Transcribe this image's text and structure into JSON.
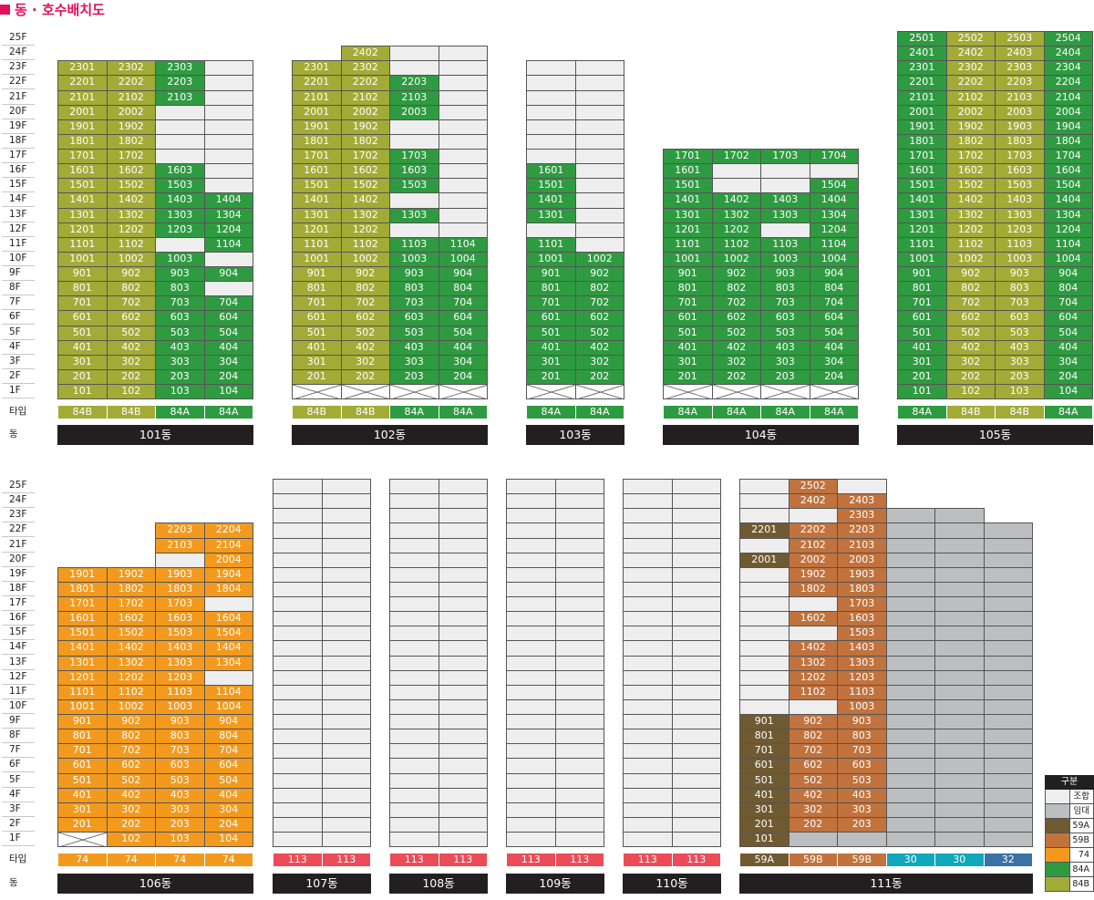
{
  "title": "동 · 호수배치도",
  "type_label": "타입",
  "dong_label": "동",
  "colors": {
    "empty": "#eeeeee",
    "rental": "#bcbec0",
    "59A": "#705a31",
    "59B": "#c1723d",
    "74": "#f39a1e",
    "84A": "#2e9b41",
    "84B": "#a3ab37",
    "113": "#ec4c57",
    "30": "#11a8bb",
    "32": "#3c71a6"
  },
  "legend": {
    "header": "구분",
    "items": [
      {
        "label": "조합",
        "color": "#eeeeee"
      },
      {
        "label": "임대",
        "color": "#bcbec0"
      },
      {
        "label": "59A",
        "color": "#705a31"
      },
      {
        "label": "59B",
        "color": "#c1723d"
      },
      {
        "label": "74",
        "color": "#f39a1e"
      },
      {
        "label": "84A",
        "color": "#2e9b41"
      },
      {
        "label": "84B",
        "color": "#a3ab37"
      }
    ]
  },
  "floor_labels": [
    "25F",
    "24F",
    "23F",
    "22F",
    "21F",
    "20F",
    "19F",
    "18F",
    "17F",
    "16F",
    "15F",
    "14F",
    "13F",
    "12F",
    "11F",
    "10F",
    "9F",
    "8F",
    "7F",
    "6F",
    "5F",
    "4F",
    "3F",
    "2F",
    "1F"
  ],
  "buildings": [
    {
      "name": "101동",
      "row": 0,
      "top_floor": 23,
      "types": [
        "84B",
        "84B",
        "84A",
        "84A"
      ],
      "grid": [
        [
          "84B:2301",
          "84B:2302",
          "84A:2303",
          "E"
        ],
        [
          "84B:2201",
          "84B:2202",
          "84A:2203",
          "E"
        ],
        [
          "84B:2101",
          "84B:2102",
          "84A:2103",
          "E"
        ],
        [
          "84B:2001",
          "84B:2002",
          "E",
          "E"
        ],
        [
          "84B:1901",
          "84B:1902",
          "E",
          "E"
        ],
        [
          "84B:1801",
          "84B:1802",
          "E",
          "E"
        ],
        [
          "84B:1701",
          "84B:1702",
          "E",
          "E"
        ],
        [
          "84B:1601",
          "84B:1602",
          "84A:1603",
          "E"
        ],
        [
          "84B:1501",
          "84B:1502",
          "84A:1503",
          "E"
        ],
        [
          "84B:1401",
          "84B:1402",
          "84A:1403",
          "84A:1404"
        ],
        [
          "84B:1301",
          "84B:1302",
          "84A:1303",
          "84A:1304"
        ],
        [
          "84B:1201",
          "84B:1202",
          "84A:1203",
          "84A:1204"
        ],
        [
          "84B:1101",
          "84B:1102",
          "E",
          "84A:1104"
        ],
        [
          "84B:1001",
          "84B:1002",
          "84A:1003",
          "E"
        ],
        [
          "84B:901",
          "84B:902",
          "84A:903",
          "84A:904"
        ],
        [
          "84B:801",
          "84B:802",
          "84A:803",
          "E"
        ],
        [
          "84B:701",
          "84B:702",
          "84A:703",
          "84A:704"
        ],
        [
          "84B:601",
          "84B:602",
          "84A:603",
          "84A:604"
        ],
        [
          "84B:501",
          "84B:502",
          "84A:503",
          "84A:504"
        ],
        [
          "84B:401",
          "84B:402",
          "84A:403",
          "84A:404"
        ],
        [
          "84B:301",
          "84B:302",
          "84A:303",
          "84A:304"
        ],
        [
          "84B:201",
          "84B:202",
          "84A:203",
          "84A:204"
        ],
        [
          "84B:101",
          "84B:102",
          "84A:103",
          "84A:104"
        ]
      ]
    },
    {
      "name": "102동",
      "row": 0,
      "top_floor": 24,
      "types": [
        "84B",
        "84B",
        "84A",
        "84A"
      ],
      "grid": [
        [
          "N",
          "84B:2402",
          "E",
          "E"
        ],
        [
          "84B:2301",
          "84B:2302",
          "E",
          "E"
        ],
        [
          "84B:2201",
          "84B:2202",
          "84A:2203",
          "E"
        ],
        [
          "84B:2101",
          "84B:2102",
          "84A:2103",
          "E"
        ],
        [
          "84B:2001",
          "84B:2002",
          "84A:2003",
          "E"
        ],
        [
          "84B:1901",
          "84B:1902",
          "E",
          "E"
        ],
        [
          "84B:1801",
          "84B:1802",
          "E",
          "E"
        ],
        [
          "84B:1701",
          "84B:1702",
          "84A:1703",
          "E"
        ],
        [
          "84B:1601",
          "84B:1602",
          "84A:1603",
          "E"
        ],
        [
          "84B:1501",
          "84B:1502",
          "84A:1503",
          "E"
        ],
        [
          "84B:1401",
          "84B:1402",
          "E",
          "E"
        ],
        [
          "84B:1301",
          "84B:1302",
          "84A:1303",
          "E"
        ],
        [
          "84B:1201",
          "84B:1202",
          "E",
          "E"
        ],
        [
          "84B:1101",
          "84B:1102",
          "84A:1103",
          "84A:1104"
        ],
        [
          "84B:1001",
          "84B:1002",
          "84A:1003",
          "84A:1004"
        ],
        [
          "84B:901",
          "84B:902",
          "84A:903",
          "84A:904"
        ],
        [
          "84B:801",
          "84B:802",
          "84A:803",
          "84A:804"
        ],
        [
          "84B:701",
          "84B:702",
          "84A:703",
          "84A:704"
        ],
        [
          "84B:601",
          "84B:602",
          "84A:603",
          "84A:604"
        ],
        [
          "84B:501",
          "84B:502",
          "84A:503",
          "84A:504"
        ],
        [
          "84B:401",
          "84B:402",
          "84A:403",
          "84A:404"
        ],
        [
          "84B:301",
          "84B:302",
          "84A:303",
          "84A:304"
        ],
        [
          "84B:201",
          "84B:202",
          "84A:203",
          "84A:204"
        ],
        [
          "X",
          "X",
          "X",
          "X"
        ]
      ]
    },
    {
      "name": "103동",
      "row": 0,
      "top_floor": 23,
      "types": [
        "84A",
        "84A"
      ],
      "grid": [
        [
          "E",
          "E"
        ],
        [
          "E",
          "E"
        ],
        [
          "E",
          "E"
        ],
        [
          "E",
          "E"
        ],
        [
          "E",
          "E"
        ],
        [
          "E",
          "E"
        ],
        [
          "E",
          "E"
        ],
        [
          "84A:1601",
          "E"
        ],
        [
          "84A:1501",
          "E"
        ],
        [
          "84A:1401",
          "E"
        ],
        [
          "84A:1301",
          "E"
        ],
        [
          "E",
          "E"
        ],
        [
          "84A:1101",
          "E"
        ],
        [
          "84A:1001",
          "84A:1002"
        ],
        [
          "84A:901",
          "84A:902"
        ],
        [
          "84A:801",
          "84A:802"
        ],
        [
          "84A:701",
          "84A:702"
        ],
        [
          "84A:601",
          "84A:602"
        ],
        [
          "84A:501",
          "84A:502"
        ],
        [
          "84A:401",
          "84A:402"
        ],
        [
          "84A:301",
          "84A:302"
        ],
        [
          "84A:201",
          "84A:202"
        ],
        [
          "X",
          "X"
        ]
      ]
    },
    {
      "name": "104동",
      "row": 0,
      "top_floor": 17,
      "types": [
        "84A",
        "84A",
        "84A",
        "84A"
      ],
      "grid": [
        [
          "84A:1701",
          "84A:1702",
          "84A:1703",
          "84A:1704"
        ],
        [
          "84A:1601",
          "E",
          "E",
          "E"
        ],
        [
          "84A:1501",
          "E",
          "E",
          "84A:1504"
        ],
        [
          "84A:1401",
          "84A:1402",
          "84A:1403",
          "84A:1404"
        ],
        [
          "84A:1301",
          "84A:1302",
          "84A:1303",
          "84A:1304"
        ],
        [
          "84A:1201",
          "84A:1202",
          "E",
          "84A:1204"
        ],
        [
          "84A:1101",
          "84A:1102",
          "84A:1103",
          "84A:1104"
        ],
        [
          "84A:1001",
          "84A:1002",
          "84A:1003",
          "84A:1004"
        ],
        [
          "84A:901",
          "84A:902",
          "84A:903",
          "84A:904"
        ],
        [
          "84A:801",
          "84A:802",
          "84A:803",
          "84A:804"
        ],
        [
          "84A:701",
          "84A:702",
          "84A:703",
          "84A:704"
        ],
        [
          "84A:601",
          "84A:602",
          "84A:603",
          "84A:604"
        ],
        [
          "84A:501",
          "84A:502",
          "84A:503",
          "84A:504"
        ],
        [
          "84A:401",
          "84A:402",
          "84A:403",
          "84A:404"
        ],
        [
          "84A:301",
          "84A:302",
          "84A:303",
          "84A:304"
        ],
        [
          "84A:201",
          "84A:202",
          "84A:203",
          "84A:204"
        ],
        [
          "X",
          "X",
          "X",
          "X"
        ]
      ]
    },
    {
      "name": "105동",
      "row": 0,
      "top_floor": 25,
      "types": [
        "84A",
        "84B",
        "84B",
        "84A"
      ],
      "grid": [
        [
          "84A:2501",
          "84B:2502",
          "84B:2503",
          "84A:2504"
        ],
        [
          "84A:2401",
          "84B:2402",
          "84B:2403",
          "84A:2404"
        ],
        [
          "84A:2301",
          "84B:2302",
          "84B:2303",
          "84A:2304"
        ],
        [
          "84A:2201",
          "84B:2202",
          "84B:2203",
          "84A:2204"
        ],
        [
          "84A:2101",
          "84B:2102",
          "84B:2103",
          "84A:2104"
        ],
        [
          "84A:2001",
          "84B:2002",
          "84B:2003",
          "84A:2004"
        ],
        [
          "84A:1901",
          "84B:1902",
          "84B:1903",
          "84A:1904"
        ],
        [
          "84A:1801",
          "84B:1802",
          "84B:1803",
          "84A:1804"
        ],
        [
          "84A:1701",
          "84B:1702",
          "84B:1703",
          "84A:1704"
        ],
        [
          "84A:1601",
          "84B:1602",
          "84B:1603",
          "84A:1604"
        ],
        [
          "84A:1501",
          "84B:1502",
          "84B:1503",
          "84A:1504"
        ],
        [
          "84A:1401",
          "84B:1402",
          "84B:1403",
          "84A:1404"
        ],
        [
          "84A:1301",
          "84B:1302",
          "84B:1303",
          "84A:1304"
        ],
        [
          "84A:1201",
          "84B:1202",
          "84B:1203",
          "84A:1204"
        ],
        [
          "84A:1101",
          "84B:1102",
          "84B:1103",
          "84A:1104"
        ],
        [
          "84A:1001",
          "84B:1002",
          "84B:1003",
          "84A:1004"
        ],
        [
          "84A:901",
          "84B:902",
          "84B:903",
          "84A:904"
        ],
        [
          "84A:801",
          "84B:802",
          "84B:803",
          "84A:804"
        ],
        [
          "84A:701",
          "84B:702",
          "84B:703",
          "84A:704"
        ],
        [
          "84A:601",
          "84B:602",
          "84B:603",
          "84A:604"
        ],
        [
          "84A:501",
          "84B:502",
          "84B:503",
          "84A:504"
        ],
        [
          "84A:401",
          "84B:402",
          "84B:403",
          "84A:404"
        ],
        [
          "84A:301",
          "84B:302",
          "84B:303",
          "84A:304"
        ],
        [
          "84A:201",
          "84B:202",
          "84B:203",
          "84A:204"
        ],
        [
          "84A:101",
          "84B:102",
          "84B:103",
          "84A:104"
        ]
      ]
    },
    {
      "name": "106동",
      "row": 1,
      "top_floor": 22,
      "types": [
        "74",
        "74",
        "74",
        "74"
      ],
      "grid": [
        [
          "N",
          "N",
          "74:2203",
          "74:2204"
        ],
        [
          "N",
          "N",
          "74:2103",
          "74:2104"
        ],
        [
          "N",
          "N",
          "E",
          "74:2004"
        ],
        [
          "74:1901",
          "74:1902",
          "74:1903",
          "74:1904"
        ],
        [
          "74:1801",
          "74:1802",
          "74:1803",
          "74:1804"
        ],
        [
          "74:1701",
          "74:1702",
          "74:1703",
          "E"
        ],
        [
          "74:1601",
          "74:1602",
          "74:1603",
          "74:1604"
        ],
        [
          "74:1501",
          "74:1502",
          "74:1503",
          "74:1504"
        ],
        [
          "74:1401",
          "74:1402",
          "74:1403",
          "74:1404"
        ],
        [
          "74:1301",
          "74:1302",
          "74:1303",
          "74:1304"
        ],
        [
          "74:1201",
          "74:1202",
          "74:1203",
          "E"
        ],
        [
          "74:1101",
          "74:1102",
          "74:1103",
          "74:1104"
        ],
        [
          "74:1001",
          "74:1002",
          "74:1003",
          "74:1004"
        ],
        [
          "74:901",
          "74:902",
          "74:903",
          "74:904"
        ],
        [
          "74:801",
          "74:802",
          "74:803",
          "74:804"
        ],
        [
          "74:701",
          "74:702",
          "74:703",
          "74:704"
        ],
        [
          "74:601",
          "74:602",
          "74:603",
          "74:604"
        ],
        [
          "74:501",
          "74:502",
          "74:503",
          "74:504"
        ],
        [
          "74:401",
          "74:402",
          "74:403",
          "74:404"
        ],
        [
          "74:301",
          "74:302",
          "74:303",
          "74:304"
        ],
        [
          "74:201",
          "74:202",
          "74:203",
          "74:204"
        ],
        [
          "X",
          "74:102",
          "74:103",
          "74:104"
        ]
      ]
    },
    {
      "name": "107동",
      "row": 1,
      "top_floor": 25,
      "types": [
        "113",
        "113"
      ],
      "fill": "E"
    },
    {
      "name": "108동",
      "row": 1,
      "top_floor": 25,
      "types": [
        "113",
        "113"
      ],
      "fill": "E"
    },
    {
      "name": "109동",
      "row": 1,
      "top_floor": 25,
      "types": [
        "113",
        "113"
      ],
      "fill": "E"
    },
    {
      "name": "110동",
      "row": 1,
      "top_floor": 25,
      "types": [
        "113",
        "113"
      ],
      "fill": "E"
    },
    {
      "name": "111동",
      "row": 1,
      "top_floor": 25,
      "types": [
        "59A",
        "59B",
        "59B",
        "30",
        "30",
        "32"
      ],
      "grid": [
        [
          "E",
          "59B:2502",
          "E",
          "N",
          "N",
          "N"
        ],
        [
          "E",
          "59B:2402",
          "59B:2403",
          "N",
          "N",
          "N"
        ],
        [
          "E",
          "E",
          "59B:2303",
          "R",
          "R",
          "N"
        ],
        [
          "59A:2201",
          "59B:2202",
          "59B:2203",
          "R",
          "R",
          "R"
        ],
        [
          "E",
          "59B:2102",
          "59B:2103",
          "R",
          "R",
          "R"
        ],
        [
          "59A:2001",
          "59B:2002",
          "59B:2003",
          "R",
          "R",
          "R"
        ],
        [
          "E",
          "59B:1902",
          "59B:1903",
          "R",
          "R",
          "R"
        ],
        [
          "E",
          "59B:1802",
          "59B:1803",
          "R",
          "R",
          "R"
        ],
        [
          "E",
          "E",
          "59B:1703",
          "R",
          "R",
          "R"
        ],
        [
          "E",
          "59B:1602",
          "59B:1603",
          "R",
          "R",
          "R"
        ],
        [
          "E",
          "E",
          "59B:1503",
          "R",
          "R",
          "R"
        ],
        [
          "E",
          "59B:1402",
          "59B:1403",
          "R",
          "R",
          "R"
        ],
        [
          "E",
          "59B:1302",
          "59B:1303",
          "R",
          "R",
          "R"
        ],
        [
          "E",
          "59B:1202",
          "59B:1203",
          "R",
          "R",
          "R"
        ],
        [
          "E",
          "59B:1102",
          "59B:1103",
          "R",
          "R",
          "R"
        ],
        [
          "E",
          "E",
          "59B:1003",
          "R",
          "R",
          "R"
        ],
        [
          "59A:901",
          "59B:902",
          "59B:903",
          "R",
          "R",
          "R"
        ],
        [
          "59A:801",
          "59B:802",
          "59B:803",
          "R",
          "R",
          "R"
        ],
        [
          "59A:701",
          "59B:702",
          "59B:703",
          "R",
          "R",
          "R"
        ],
        [
          "59A:601",
          "59B:602",
          "59B:603",
          "R",
          "R",
          "R"
        ],
        [
          "59A:501",
          "59B:502",
          "59B:503",
          "R",
          "R",
          "R"
        ],
        [
          "59A:401",
          "59B:402",
          "59B:403",
          "R",
          "R",
          "R"
        ],
        [
          "59A:301",
          "59B:302",
          "59B:303",
          "R",
          "R",
          "R"
        ],
        [
          "59A:201",
          "59B:202",
          "59B:203",
          "R",
          "R",
          "R"
        ],
        [
          "59A:101",
          "R",
          "R",
          "R",
          "R",
          "R"
        ]
      ]
    }
  ]
}
